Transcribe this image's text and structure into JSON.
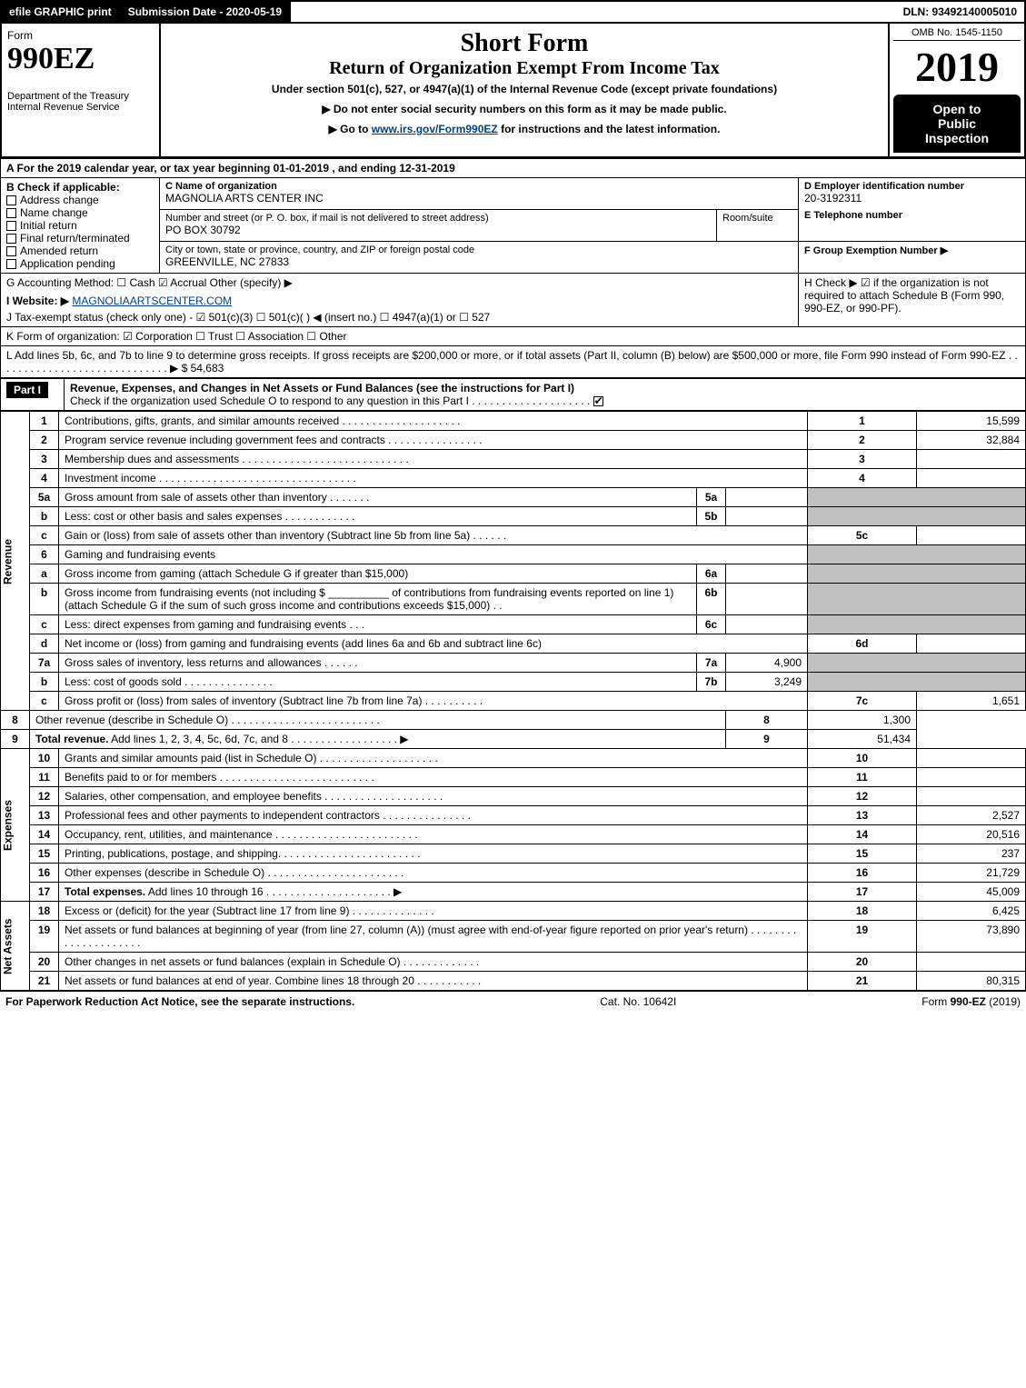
{
  "topbar": {
    "efile": "efile GRAPHIC print",
    "submission": "Submission Date - 2020-05-19",
    "dln": "DLN: 93492140005010"
  },
  "header": {
    "form": "Form",
    "number": "990EZ",
    "dept": "Department of the Treasury",
    "irs": "Internal Revenue Service",
    "short": "Short Form",
    "title": "Return of Organization Exempt From Income Tax",
    "subtitle": "Under section 501(c), 527, or 4947(a)(1) of the Internal Revenue Code (except private foundations)",
    "note1": "▶ Do not enter social security numbers on this form as it may be made public.",
    "note2_pre": "▶ Go to ",
    "note2_link": "www.irs.gov/Form990EZ",
    "note2_post": " for instructions and the latest information.",
    "omb": "OMB No. 1545-1150",
    "year": "2019",
    "open1": "Open to",
    "open2": "Public",
    "open3": "Inspection"
  },
  "period": "A  For the 2019 calendar year, or tax year beginning 01-01-2019 , and ending 12-31-2019",
  "boxB": {
    "head": "B  Check if applicable:",
    "o1": "Address change",
    "o2": "Name change",
    "o3": "Initial return",
    "o4": "Final return/terminated",
    "o5": "Amended return",
    "o6": "Application pending"
  },
  "boxC": {
    "label": "C Name of organization",
    "name": "MAGNOLIA ARTS CENTER INC",
    "addr_label": "Number and street (or P. O. box, if mail is not delivered to street address)",
    "room": "Room/suite",
    "addr": "PO BOX 30792",
    "city_label": "City or town, state or province, country, and ZIP or foreign postal code",
    "city": "GREENVILLE, NC  27833"
  },
  "boxD": {
    "label": "D Employer identification number",
    "val": "20-3192311"
  },
  "boxE": {
    "label": "E Telephone number",
    "val": ""
  },
  "boxF": {
    "label": "F Group Exemption Number  ▶",
    "val": ""
  },
  "lineG": "G Accounting Method:   ☐ Cash   ☑ Accrual   Other (specify) ▶",
  "lineH": "H  Check ▶  ☑  if the organization is not required to attach Schedule B (Form 990, 990-EZ, or 990-PF).",
  "lineI_pre": "I Website: ▶",
  "lineI_link": "MAGNOLIAARTSCENTER.COM",
  "lineJ": "J Tax-exempt status (check only one) - ☑ 501(c)(3) ☐ 501(c)(  ) ◀ (insert no.) ☐ 4947(a)(1) or ☐ 527",
  "lineK": "K Form of organization:   ☑ Corporation   ☐ Trust   ☐ Association   ☐ Other",
  "lineL": "L Add lines 5b, 6c, and 7b to line 9 to determine gross receipts. If gross receipts are $200,000 or more, or if total assets (Part II, column (B) below) are $500,000 or more, file Form 990 instead of Form 990-EZ . . . . . . . . . . . . . . . . . . . . . . . . . . . . . ▶ $ 54,683",
  "part1": {
    "head": "Part I",
    "title": "Revenue, Expenses, and Changes in Net Assets or Fund Balances (see the instructions for Part I)",
    "check": "Check if the organization used Schedule O to respond to any question in this Part I . . . . . . . . . . . . . . . . . . . .",
    "rev_label": "Revenue",
    "exp_label": "Expenses",
    "na_label": "Net Assets"
  },
  "rows": {
    "1": {
      "n": "1",
      "d": "Contributions, gifts, grants, and similar amounts received . . . . . . . . . . . . . . . . . . . .",
      "r": "1",
      "v": "15,599"
    },
    "2": {
      "n": "2",
      "d": "Program service revenue including government fees and contracts . . . . . . . . . . . . . . . .",
      "r": "2",
      "v": "32,884"
    },
    "3": {
      "n": "3",
      "d": "Membership dues and assessments . . . . . . . . . . . . . . . . . . . . . . . . . . . .",
      "r": "3",
      "v": ""
    },
    "4": {
      "n": "4",
      "d": "Investment income . . . . . . . . . . . . . . . . . . . . . . . . . . . . . . . . .",
      "r": "4",
      "v": ""
    },
    "5a": {
      "n": "5a",
      "d": "Gross amount from sale of assets other than inventory . . . . . . .",
      "box": "5a",
      "bv": ""
    },
    "5b": {
      "n": "b",
      "d": "Less: cost or other basis and sales expenses . . . . . . . . . . . .",
      "box": "5b",
      "bv": ""
    },
    "5c": {
      "n": "c",
      "d": "Gain or (loss) from sale of assets other than inventory (Subtract line 5b from line 5a) . . . . . .",
      "r": "5c",
      "v": ""
    },
    "6": {
      "n": "6",
      "d": "Gaming and fundraising events"
    },
    "6a": {
      "n": "a",
      "d": "Gross income from gaming (attach Schedule G if greater than $15,000)",
      "box": "6a",
      "bv": ""
    },
    "6b": {
      "n": "b",
      "d": "Gross income from fundraising events (not including $ __________ of contributions from fundraising events reported on line 1) (attach Schedule G if the sum of such gross income and contributions exceeds $15,000)   . .",
      "box": "6b",
      "bv": ""
    },
    "6c": {
      "n": "c",
      "d": "Less: direct expenses from gaming and fundraising events    . . .",
      "box": "6c",
      "bv": ""
    },
    "6d": {
      "n": "d",
      "d": "Net income or (loss) from gaming and fundraising events (add lines 6a and 6b and subtract line 6c)",
      "r": "6d",
      "v": ""
    },
    "7a": {
      "n": "7a",
      "d": "Gross sales of inventory, less returns and allowances . . . . . .",
      "box": "7a",
      "bv": "4,900"
    },
    "7b": {
      "n": "b",
      "d": "Less: cost of goods sold     . . . . . . . . . . . . . . .",
      "box": "7b",
      "bv": "3,249"
    },
    "7c": {
      "n": "c",
      "d": "Gross profit or (loss) from sales of inventory (Subtract line 7b from line 7a) . . . . . . . . . .",
      "r": "7c",
      "v": "1,651"
    },
    "8": {
      "n": "8",
      "d": "Other revenue (describe in Schedule O) . . . . . . . . . . . . . . . . . . . . . . . . .",
      "r": "8",
      "v": "1,300"
    },
    "9": {
      "n": "9",
      "d": "Total revenue. Add lines 1, 2, 3, 4, 5c, 6d, 7c, and 8 . . . . . . . . . . . . . . . . . .  ▶",
      "r": "9",
      "v": "51,434",
      "bold": true
    },
    "10": {
      "n": "10",
      "d": "Grants and similar amounts paid (list in Schedule O) . . . . . . . . . . . . . . . . . . . .",
      "r": "10",
      "v": ""
    },
    "11": {
      "n": "11",
      "d": "Benefits paid to or for members    . . . . . . . . . . . . . . . . . . . . . . . . . .",
      "r": "11",
      "v": ""
    },
    "12": {
      "n": "12",
      "d": "Salaries, other compensation, and employee benefits . . . . . . . . . . . . . . . . . . . .",
      "r": "12",
      "v": ""
    },
    "13": {
      "n": "13",
      "d": "Professional fees and other payments to independent contractors . . . . . . . . . . . . . . .",
      "r": "13",
      "v": "2,527"
    },
    "14": {
      "n": "14",
      "d": "Occupancy, rent, utilities, and maintenance . . . . . . . . . . . . . . . . . . . . . . . .",
      "r": "14",
      "v": "20,516"
    },
    "15": {
      "n": "15",
      "d": "Printing, publications, postage, and shipping. . . . . . . . . . . . . . . . . . . . . . . .",
      "r": "15",
      "v": "237"
    },
    "16": {
      "n": "16",
      "d": "Other expenses (describe in Schedule O)    . . . . . . . . . . . . . . . . . . . . . . .",
      "r": "16",
      "v": "21,729"
    },
    "17": {
      "n": "17",
      "d": "Total expenses. Add lines 10 through 16    . . . . . . . . . . . . . . . . . . . . .  ▶",
      "r": "17",
      "v": "45,009",
      "bold": true
    },
    "18": {
      "n": "18",
      "d": "Excess or (deficit) for the year (Subtract line 17 from line 9)      . . . . . . . . . . . . . .",
      "r": "18",
      "v": "6,425"
    },
    "19": {
      "n": "19",
      "d": "Net assets or fund balances at beginning of year (from line 27, column (A)) (must agree with end-of-year figure reported on prior year's return) . . . . . . . . . . . . . . . . . . . . .",
      "r": "19",
      "v": "73,890"
    },
    "20": {
      "n": "20",
      "d": "Other changes in net assets or fund balances (explain in Schedule O) . . . . . . . . . . . . .",
      "r": "20",
      "v": ""
    },
    "21": {
      "n": "21",
      "d": "Net assets or fund balances at end of year. Combine lines 18 through 20 . . . . . . . . . . .",
      "r": "21",
      "v": "80,315"
    }
  },
  "footer": {
    "left": "For Paperwork Reduction Act Notice, see the separate instructions.",
    "mid": "Cat. No. 10642I",
    "right": "Form 990-EZ (2019)"
  }
}
